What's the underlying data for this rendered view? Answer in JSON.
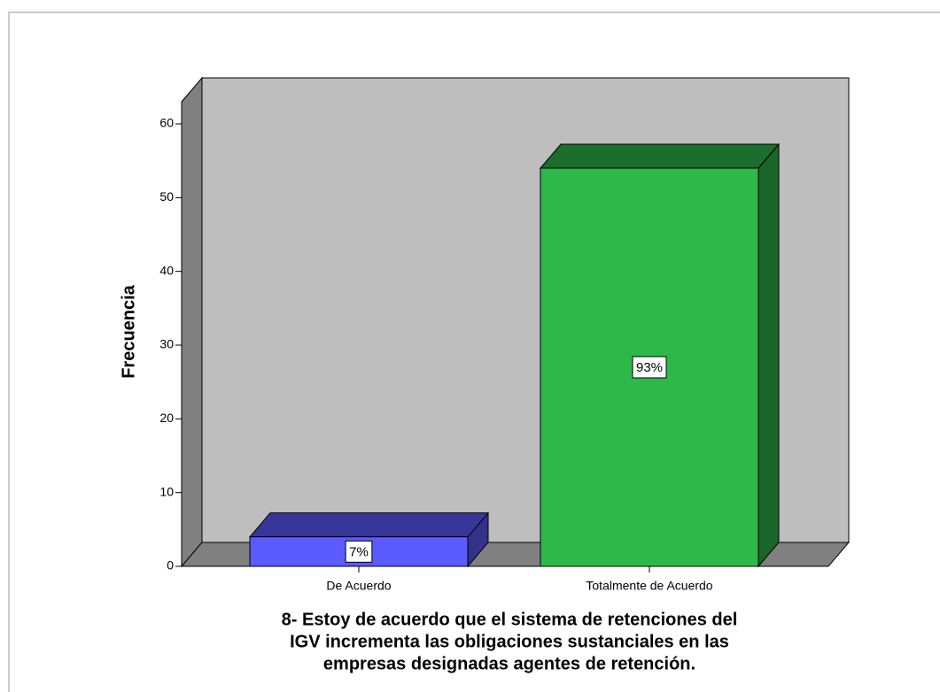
{
  "chart_data": {
    "type": "bar3d",
    "title": [
      "8- Estoy de acuerdo que el sistema de retenciones del",
      "IGV incrementa las obligaciones sustanciales en las",
      "empresas designadas agentes de retención."
    ],
    "y_label": "Frecuencia",
    "categories": [
      "De Acuerdo",
      "Totalmente de Acuerdo"
    ],
    "values": [
      4,
      54
    ],
    "data_labels": [
      "7%",
      "93%"
    ],
    "colors": [
      "#5b5bff",
      "#2fb84a"
    ],
    "ylim": [
      0,
      63
    ],
    "yticks": [
      0,
      10,
      20,
      30,
      40,
      50,
      60
    ]
  }
}
